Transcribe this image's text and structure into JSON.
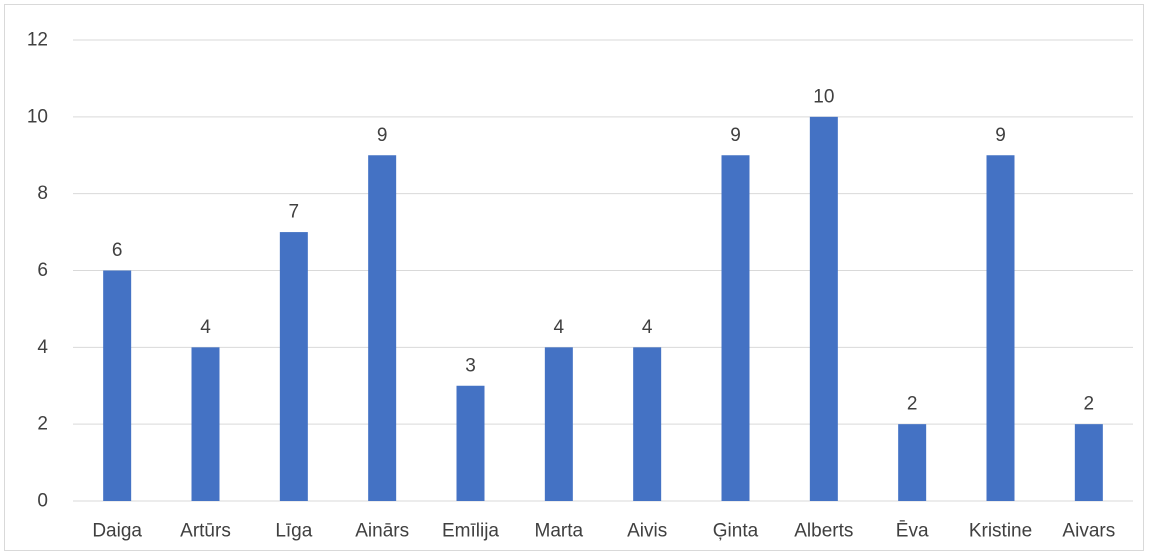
{
  "chart_data": {
    "type": "bar",
    "title": "",
    "xlabel": "",
    "ylabel": "",
    "categories": [
      "Daiga",
      "Artūrs",
      "Līga",
      "Ainārs",
      "Emīlija",
      "Marta",
      "Aivis",
      "Ģinta",
      "Alberts",
      "Ēva",
      "Kristine",
      "Aivars"
    ],
    "values": [
      6,
      4,
      7,
      9,
      3,
      4,
      4,
      9,
      10,
      2,
      9,
      2
    ],
    "ylim": [
      0,
      12
    ],
    "yticks": [
      0,
      2,
      4,
      6,
      8,
      10,
      12
    ],
    "grid": true,
    "legend": "none",
    "bar_color": "#4472c4",
    "grid_color": "#d9d9d9",
    "text_color": "#404040"
  }
}
